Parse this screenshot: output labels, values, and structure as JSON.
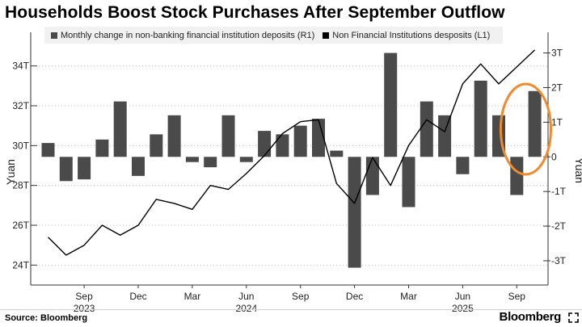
{
  "chart_data": {
    "type": "bar+line",
    "title": "Households Boost Stock Purchases After September Outflow",
    "legend": [
      {
        "label": "Monthly change in non-banking financial institution deposits (R1)",
        "kind": "bar",
        "color": "#4a4a4a"
      },
      {
        "label": "Non Financial Institutions desposits (L1)",
        "kind": "line",
        "color": "#000000"
      }
    ],
    "months": [
      "2023-07",
      "2023-08",
      "2023-09",
      "2023-10",
      "2023-11",
      "2023-12",
      "2024-01",
      "2024-02",
      "2024-03",
      "2024-04",
      "2024-05",
      "2024-06",
      "2024-07",
      "2024-08",
      "2024-09",
      "2024-10",
      "2024-11",
      "2024-12",
      "2025-01",
      "2025-02",
      "2025-03",
      "2025-04",
      "2025-05",
      "2025-06",
      "2025-07",
      "2025-08",
      "2025-09",
      "2025-10"
    ],
    "series": [
      {
        "name": "Monthly change in non-banking financial institution deposits (R1)",
        "kind": "bar",
        "axis": "right",
        "unit": "T",
        "values": [
          0.4,
          -0.7,
          -0.65,
          0.5,
          1.6,
          -0.55,
          0.65,
          1.2,
          -0.15,
          -0.3,
          1.2,
          -0.15,
          0.75,
          0.65,
          0.9,
          1.1,
          0.18,
          -3.2,
          -1.1,
          3.0,
          -1.45,
          1.6,
          1.2,
          -0.5,
          2.2,
          1.2,
          -1.1,
          1.9
        ]
      },
      {
        "name": "Non Financial Institutions desposits (L1)",
        "kind": "line",
        "axis": "left",
        "unit": "T",
        "values": [
          25.4,
          24.5,
          25.0,
          26.0,
          25.5,
          26.0,
          27.3,
          27.1,
          26.8,
          28.0,
          27.8,
          28.6,
          29.5,
          30.6,
          31.2,
          31.3,
          28.1,
          27.1,
          29.4,
          28.0,
          30.0,
          31.3,
          30.7,
          33.1,
          34.1,
          33.1,
          34.8
        ],
        "line_extends_to_months": 27
      }
    ],
    "left_axis": {
      "label": "Yuan",
      "ylim": [
        23.0,
        35.0
      ],
      "ticks": [
        24,
        26,
        28,
        30,
        32,
        34
      ],
      "tick_labels": [
        "24T",
        "26T",
        "28T",
        "30T",
        "32T",
        "34T"
      ]
    },
    "right_axis": {
      "label": "Yuan",
      "ylim": [
        -3.7,
        3.2
      ],
      "ticks": [
        3,
        2,
        1,
        0,
        -1,
        -2,
        -3
      ],
      "tick_labels": [
        "3T",
        "2T",
        "1T",
        "0",
        "-1T",
        "-2T",
        "-3T"
      ]
    },
    "x_ticks": [
      {
        "month_index": 2,
        "label": "Sep",
        "year": "2023"
      },
      {
        "month_index": 5,
        "label": "Dec",
        "year": ""
      },
      {
        "month_index": 8,
        "label": "Mar",
        "year": ""
      },
      {
        "month_index": 11,
        "label": "Jun",
        "year": "2024"
      },
      {
        "month_index": 14,
        "label": "Sep",
        "year": ""
      },
      {
        "month_index": 17,
        "label": "Dec",
        "year": ""
      },
      {
        "month_index": 20,
        "label": "Mar",
        "year": ""
      },
      {
        "month_index": 23,
        "label": "Jun",
        "year": "2025"
      },
      {
        "month_index": 26,
        "label": "Sep",
        "year": ""
      }
    ],
    "highlight": {
      "type": "circle",
      "color": "#ef8a2d",
      "month_index": 26.5
    },
    "grid": "horizontal-dotted"
  },
  "footer": {
    "source": "Source: Bloomberg",
    "brand": "Bloomberg"
  }
}
